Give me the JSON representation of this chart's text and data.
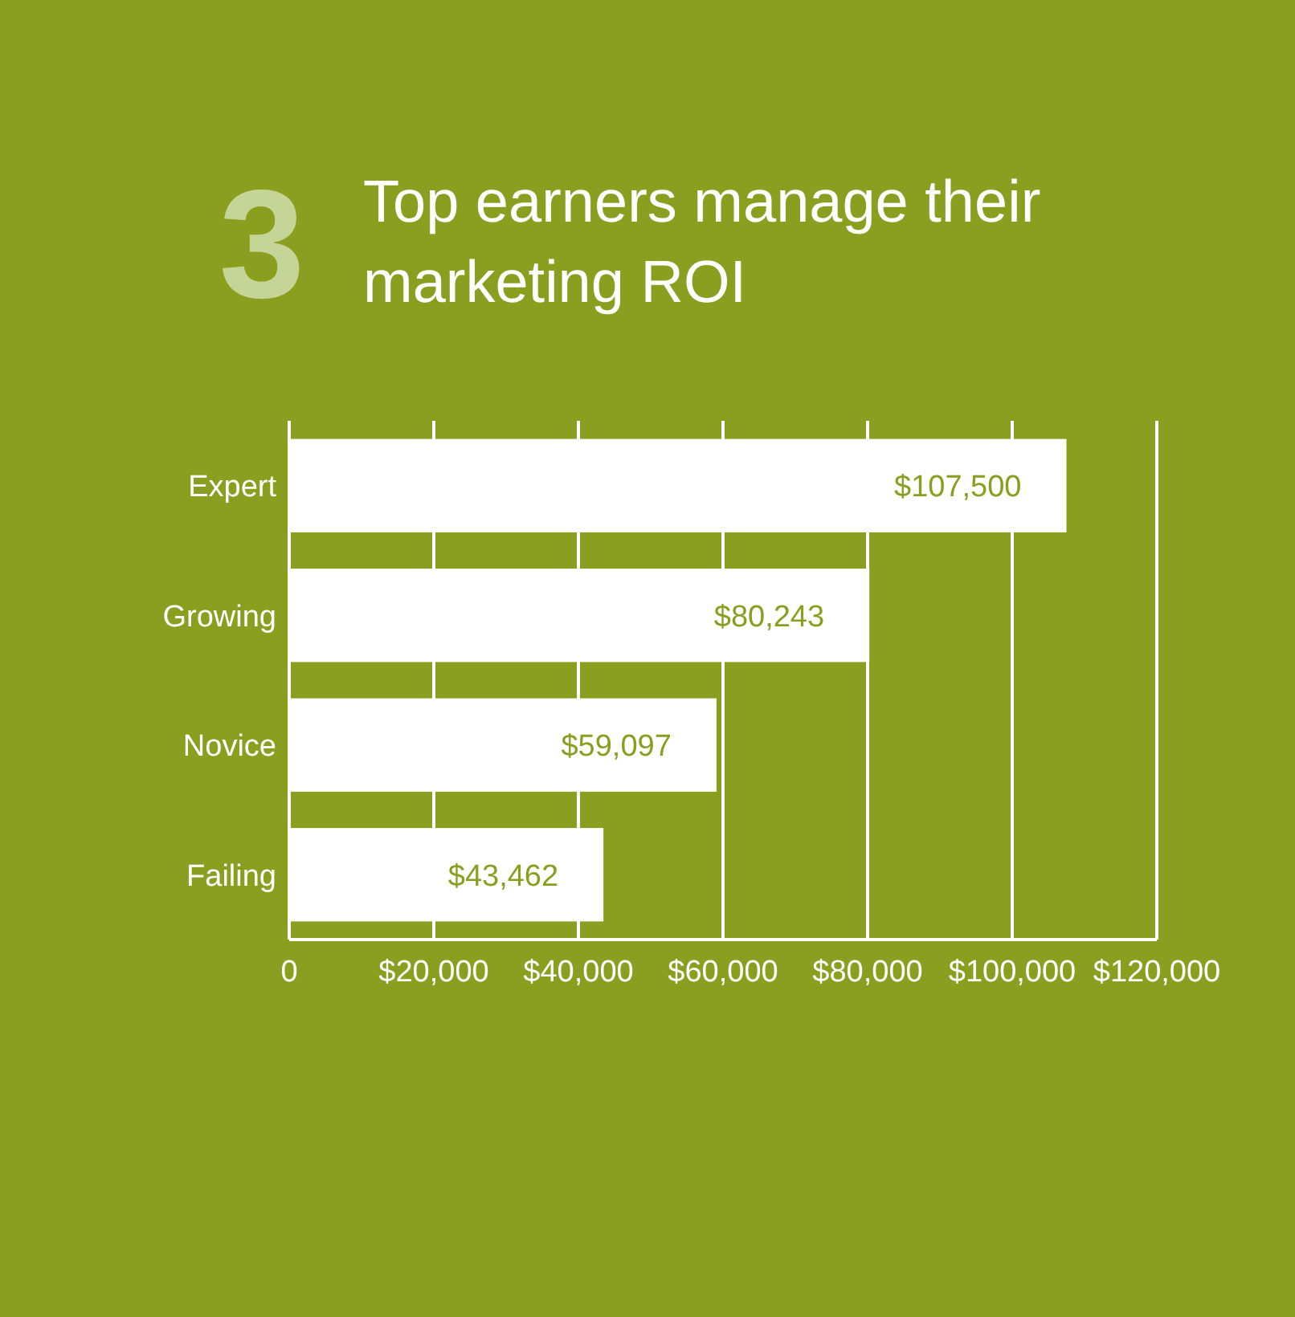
{
  "chart_data": {
    "type": "bar",
    "orientation": "horizontal",
    "title": "Top earners manage their marketing ROI",
    "annotations": [
      "3"
    ],
    "categories": [
      "Expert",
      "Growing",
      "Novice",
      "Failing"
    ],
    "values": [
      107500,
      80243,
      59097,
      43462
    ],
    "value_labels": [
      "$107,500",
      "$80,243",
      "$59,097",
      "$43,462"
    ],
    "color": "#ffffff",
    "xlim": [
      0,
      120000
    ],
    "xticks": [
      0,
      {
        "value": 20000,
        "label": "$20,000"
      },
      {
        "value": 40000,
        "label": "$40,000"
      },
      {
        "value": 60000,
        "label": "$60,000"
      },
      {
        "value": 80000,
        "label": "$80,000"
      },
      {
        "value": 100000,
        "label": "$100,000"
      },
      {
        "value": 120000,
        "label": "$120,000"
      }
    ],
    "grid": "x"
  }
}
